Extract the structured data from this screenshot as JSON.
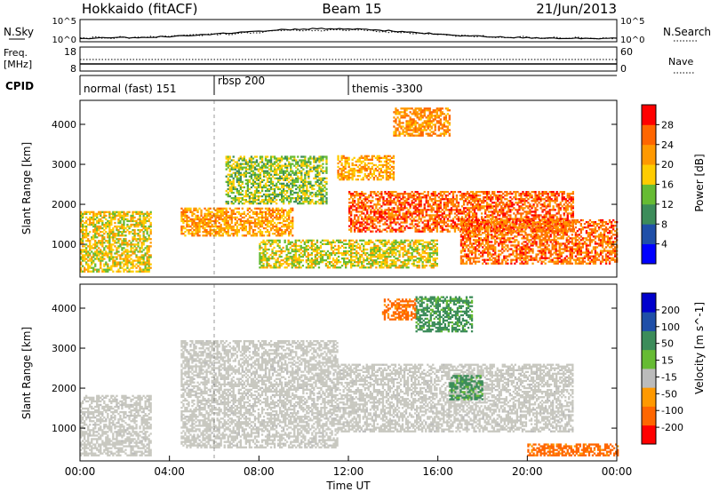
{
  "header": {
    "station": "Hokkaido (fitACF)",
    "beam": "Beam 15",
    "date": "21/Jun/2013"
  },
  "nsky_panel": {
    "left_label": "N.Sky",
    "right_label": "N.Search",
    "left_ticks": [
      "10^5",
      "10^0"
    ],
    "right_ticks": [
      "10^5",
      "10^0"
    ]
  },
  "freq_panel": {
    "left_label_top": "Freq.",
    "left_label_unit": "[MHz]",
    "right_label": "Nave",
    "left_ticks": [
      "18",
      "8"
    ],
    "right_ticks": [
      "60",
      "0"
    ]
  },
  "cpid_panel": {
    "label": "CPID",
    "segments": [
      {
        "name": "normal (fast) 151",
        "start_hour": 0
      },
      {
        "name": "rbsp 200",
        "start_hour": 6
      },
      {
        "name": "themis -3300",
        "start_hour": 12
      }
    ]
  },
  "colors": {
    "power": [
      "#0000ff",
      "#1f4fa8",
      "#3c8c5a",
      "#66bb33",
      "#ffcc00",
      "#ff9900",
      "#ff6600",
      "#ff0000"
    ],
    "velocity": [
      "#ff0000",
      "#ff6600",
      "#ff9900",
      "#bbbbbb",
      "#66bb33",
      "#3c8c5a",
      "#1f4fa8",
      "#0000cc"
    ],
    "ground_scatter": "#c8c8c0"
  },
  "chart_data": [
    {
      "type": "heatmap",
      "name": "power",
      "xlabel": "",
      "ylabel": "Slant Range [km]",
      "xlim": [
        0,
        24
      ],
      "ylim": [
        180,
        4600
      ],
      "yticks": [
        1000,
        2000,
        3000,
        4000
      ],
      "colorbar": {
        "label": "Power [dB]",
        "ticks": [
          4,
          8,
          12,
          16,
          20,
          24,
          28
        ],
        "range": [
          0,
          32
        ]
      },
      "bands": [
        {
          "t0": 0.0,
          "t1": 3.2,
          "r0": 300,
          "r1": 1800,
          "level": 18
        },
        {
          "t0": 4.5,
          "t1": 9.5,
          "r0": 1200,
          "r1": 1900,
          "level": 22
        },
        {
          "t0": 6.5,
          "t1": 11.0,
          "r0": 2000,
          "r1": 3200,
          "level": 15
        },
        {
          "t0": 11.5,
          "t1": 14.0,
          "r0": 2600,
          "r1": 3200,
          "level": 21
        },
        {
          "t0": 14.0,
          "t1": 16.5,
          "r0": 3700,
          "r1": 4400,
          "level": 23
        },
        {
          "t0": 12.0,
          "t1": 22.0,
          "r0": 1300,
          "r1": 2300,
          "level": 26
        },
        {
          "t0": 17.0,
          "t1": 24.0,
          "r0": 500,
          "r1": 1600,
          "level": 25
        },
        {
          "t0": 8.0,
          "t1": 16.0,
          "r0": 400,
          "r1": 1100,
          "level": 17
        }
      ]
    },
    {
      "type": "heatmap",
      "name": "velocity",
      "xlabel": "Time UT",
      "ylabel": "Slant Range [km]",
      "xlim": [
        0,
        24
      ],
      "ylim": [
        180,
        4600
      ],
      "yticks": [
        1000,
        2000,
        3000,
        4000
      ],
      "xticks": [
        "00:00",
        "04:00",
        "08:00",
        "12:00",
        "16:00",
        "20:00",
        "00:00"
      ],
      "xtick_hours": [
        0,
        4,
        8,
        12,
        16,
        20,
        24
      ],
      "colorbar": {
        "label": "Velocity [m s^-1]",
        "ticks": [
          200,
          100,
          50,
          15,
          -15,
          -50,
          -100,
          -200
        ]
      },
      "bands": [
        {
          "t0": 0.0,
          "t1": 3.2,
          "r0": 300,
          "r1": 1800,
          "vel": 0
        },
        {
          "t0": 4.5,
          "t1": 11.5,
          "r0": 500,
          "r1": 3200,
          "vel": 0
        },
        {
          "t0": 11.5,
          "t1": 22.0,
          "r0": 900,
          "r1": 2600,
          "vel": 0
        },
        {
          "t0": 15.0,
          "t1": 17.5,
          "r0": 3400,
          "r1": 4300,
          "vel": 40
        },
        {
          "t0": 16.5,
          "t1": 18.0,
          "r0": 1700,
          "r1": 2300,
          "vel": 40
        },
        {
          "t0": 13.5,
          "t1": 15.0,
          "r0": 3700,
          "r1": 4200,
          "vel": -40
        },
        {
          "t0": 20.0,
          "t1": 24.0,
          "r0": 300,
          "r1": 600,
          "vel": -40
        }
      ]
    }
  ]
}
